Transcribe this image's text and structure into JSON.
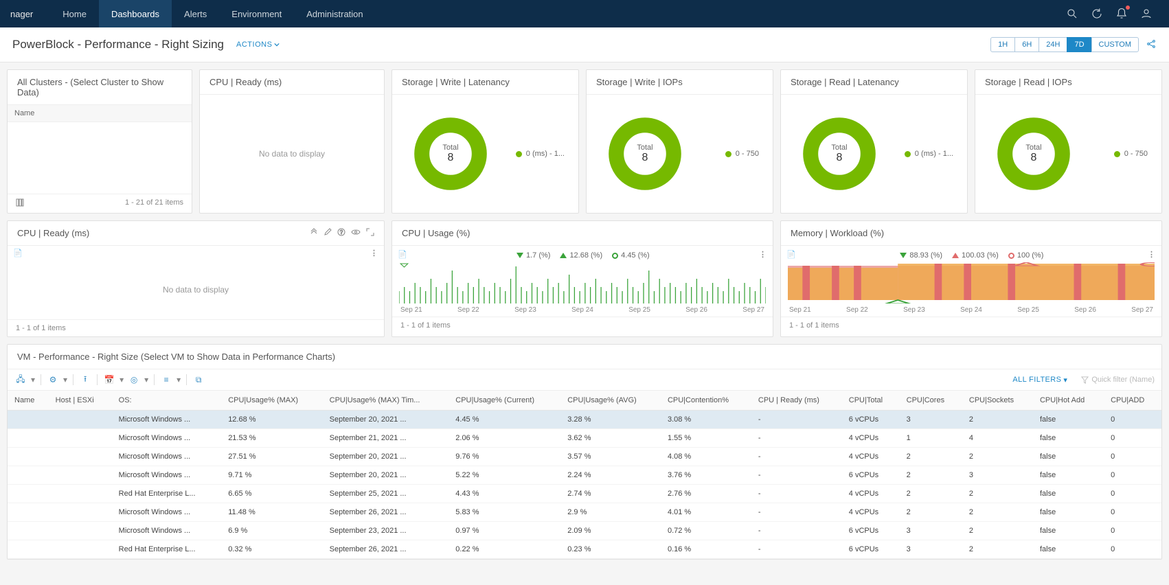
{
  "brand": "nager",
  "nav": [
    "Home",
    "Dashboards",
    "Alerts",
    "Environment",
    "Administration"
  ],
  "nav_active": 1,
  "page_title": "PowerBlock - Performance - Right Sizing",
  "actions_label": "ACTIONS",
  "time_ranges": [
    "1H",
    "6H",
    "24H",
    "7D",
    "CUSTOM"
  ],
  "time_active": 3,
  "colors": {
    "topbar": "#0e2d4a",
    "accent": "#1e88c7",
    "donut_green": "#76b900",
    "chart_green": "#3aa33a",
    "mem_red": "#e06c6c",
    "mem_orange": "#f0a94c",
    "value_green": "#3a9a3a",
    "value_orange": "#d68a1e",
    "value_yellow": "#c9a61a"
  },
  "cluster_card": {
    "title": "All Clusters - (Select Cluster to Show Data)",
    "col_header": "Name",
    "footer": "1 - 21 of 21 items"
  },
  "cpu_ready_card": {
    "title": "CPU | Ready (ms)",
    "no_data": "No data to display"
  },
  "donut_cards": [
    {
      "title": "Storage | Write | Latenancy",
      "center_label": "Total",
      "center_value": "8",
      "legend": "0 (ms) - 1..."
    },
    {
      "title": "Storage | Write | IOPs",
      "center_label": "Total",
      "center_value": "8",
      "legend": "0 - 750"
    },
    {
      "title": "Storage | Read | Latenancy",
      "center_label": "Total",
      "center_value": "8",
      "legend": "0 (ms) - 1..."
    },
    {
      "title": "Storage | Read | IOPs",
      "center_label": "Total",
      "center_value": "8",
      "legend": "0 - 750"
    }
  ],
  "cpu_ready2": {
    "title": "CPU | Ready (ms)",
    "no_data": "No data to display",
    "footer": "1 - 1 of 1 items"
  },
  "cpu_usage": {
    "title": "CPU | Usage (%)",
    "legend": [
      {
        "shape": "down",
        "color": "#3aa33a",
        "label": "1.7 (%)"
      },
      {
        "shape": "up",
        "color": "#3aa33a",
        "label": "12.68 (%)"
      },
      {
        "shape": "circle",
        "color": "#3aa33a",
        "label": "4.45 (%)"
      }
    ],
    "dates": [
      "Sep 21",
      "Sep 22",
      "Sep 23",
      "Sep 24",
      "Sep 25",
      "Sep 26",
      "Sep 27"
    ],
    "footer": "1 - 1 of 1 items",
    "spark": [
      3,
      4,
      3,
      5,
      4,
      3,
      6,
      4,
      3,
      5,
      8,
      4,
      3,
      5,
      4,
      6,
      4,
      3,
      5,
      4,
      3,
      6,
      9,
      4,
      3,
      5,
      4,
      3,
      6,
      4,
      5,
      3,
      7,
      4,
      3,
      5,
      4,
      6,
      4,
      3,
      5,
      4,
      3,
      6,
      4,
      3,
      5,
      8,
      3,
      6,
      4,
      5,
      4,
      3,
      5,
      4,
      6,
      4,
      3,
      5,
      4,
      3,
      6,
      4,
      3,
      5,
      4,
      3,
      6,
      4
    ]
  },
  "mem_workload": {
    "title": "Memory | Workload (%)",
    "legend": [
      {
        "shape": "down",
        "color": "#3aa33a",
        "label": "88.93 (%)"
      },
      {
        "shape": "up",
        "color": "#e06c6c",
        "label": "100.03 (%)"
      },
      {
        "shape": "circle",
        "color": "#e06c6c",
        "label": "100 (%)"
      }
    ],
    "dates": [
      "Sep 21",
      "Sep 22",
      "Sep 23",
      "Sep 24",
      "Sep 25",
      "Sep 26",
      "Sep 27"
    ],
    "footer": "1 - 1 of 1 items"
  },
  "vm_title": "VM - Performance - Right Size (Select VM to Show Data in Performance Charts)",
  "vm_filters": "ALL FILTERS",
  "vm_quick": "Quick filter (Name)",
  "vm_columns": [
    "Name",
    "Host | ESXi",
    "OS:",
    "CPU|Usage% (MAX)",
    "CPU|Usage% (MAX) Tim...",
    "CPU|Usage% (Current)",
    "CPU|Usage% (AVG)",
    "CPU|Contention%",
    "CPU | Ready (ms)",
    "CPU|Total",
    "CPU|Cores",
    "CPU|Sockets",
    "CPU|Hot Add",
    "CPU|ADD"
  ],
  "vm_rows": [
    {
      "sel": true,
      "os": "Microsoft Windows ...",
      "max": "12.68 %",
      "maxt": "September 20, 2021 ...",
      "cur": "4.45 %",
      "avg": "3.28 %",
      "cont": "3.08 %",
      "cont_c": "orange",
      "ready": "-",
      "total": "6 vCPUs",
      "cores": "3",
      "sock": "2",
      "sock_c": "green",
      "hot": "false",
      "add": "0"
    },
    {
      "sel": false,
      "os": "Microsoft Windows ...",
      "max": "21.53 %",
      "maxt": "September 21, 2021 ...",
      "cur": "2.06 %",
      "avg": "3.62 %",
      "cont": "1.55 %",
      "cont_c": "yellow",
      "ready": "-",
      "total": "4 vCPUs",
      "cores": "1",
      "sock": "4",
      "sock_c": "yellow",
      "hot": "false",
      "add": "0"
    },
    {
      "sel": false,
      "os": "Microsoft Windows ...",
      "max": "27.51 %",
      "maxt": "September 20, 2021 ...",
      "cur": "9.76 %",
      "avg": "3.57 %",
      "cont": "4.08 %",
      "cont_c": "orange",
      "ready": "-",
      "total": "4 vCPUs",
      "cores": "2",
      "sock": "2",
      "sock_c": "green",
      "hot": "false",
      "add": "0"
    },
    {
      "sel": false,
      "os": "Microsoft Windows ...",
      "max": "9.71 %",
      "maxt": "September 20, 2021 ...",
      "cur": "5.22 %",
      "avg": "2.24 %",
      "cont": "3.76 %",
      "cont_c": "orange",
      "ready": "-",
      "total": "6 vCPUs",
      "cores": "2",
      "sock": "3",
      "sock_c": "green",
      "hot": "false",
      "add": "0"
    },
    {
      "sel": false,
      "os": "Red Hat Enterprise L...",
      "max": "6.65 %",
      "maxt": "September 25, 2021 ...",
      "cur": "4.43 %",
      "avg": "2.74 %",
      "cont": "2.76 %",
      "cont_c": "yellow",
      "ready": "-",
      "total": "4 vCPUs",
      "cores": "2",
      "sock": "2",
      "sock_c": "green",
      "hot": "false",
      "add": "0"
    },
    {
      "sel": false,
      "os": "Microsoft Windows ...",
      "max": "11.48 %",
      "maxt": "September 26, 2021 ...",
      "cur": "5.83 %",
      "avg": "2.9 %",
      "cont": "4.01 %",
      "cont_c": "orange",
      "ready": "-",
      "total": "4 vCPUs",
      "cores": "2",
      "sock": "2",
      "sock_c": "green",
      "hot": "false",
      "add": "0"
    },
    {
      "sel": false,
      "os": "Microsoft Windows ...",
      "max": "6.9 %",
      "maxt": "September 23, 2021 ...",
      "cur": "0.97 %",
      "avg": "2.09 %",
      "cont": "0.72 %",
      "cont_c": "green",
      "ready": "-",
      "total": "6 vCPUs",
      "cores": "3",
      "sock": "2",
      "sock_c": "green",
      "hot": "false",
      "add": "0"
    },
    {
      "sel": false,
      "os": "Red Hat Enterprise L...",
      "max": "0.32 %",
      "maxt": "September 26, 2021 ...",
      "cur": "0.22 %",
      "avg": "0.23 %",
      "cont": "0.16 %",
      "cont_c": "green",
      "ready": "-",
      "total": "6 vCPUs",
      "cores": "3",
      "sock": "2",
      "sock_c": "green",
      "hot": "false",
      "add": "0"
    }
  ]
}
